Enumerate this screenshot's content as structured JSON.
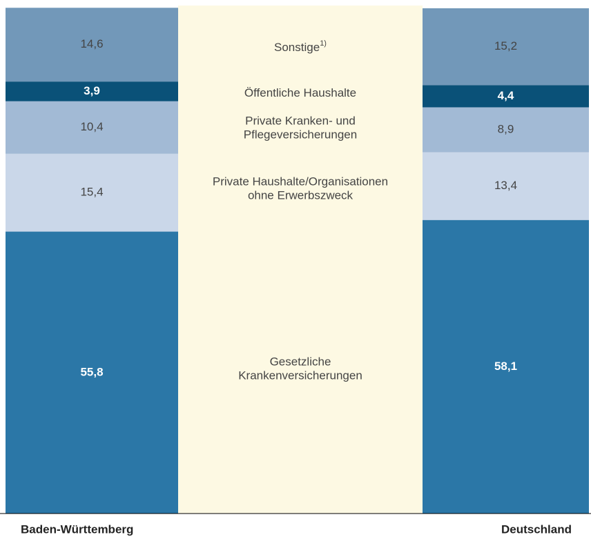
{
  "chart_data": {
    "type": "stacked_bar",
    "categories": [
      "Baden-Württemberg",
      "Deutschland"
    ],
    "ylim": [
      0,
      100
    ],
    "series": [
      {
        "name": "Gesetzliche\nKrankenversicherungen",
        "color": "#2b77a7",
        "label_color": "#ffffff",
        "values": [
          55.8,
          58.1
        ],
        "value_labels": [
          "55,8",
          "58,1"
        ]
      },
      {
        "name": "Private Haushalte/Organisationen\nohne Erwerbszweck",
        "color": "#cad7e9",
        "label_color": "#444444",
        "values": [
          15.4,
          13.4
        ],
        "value_labels": [
          "15,4",
          "13,4"
        ]
      },
      {
        "name": "Private Kranken- und\nPflegeversicherungen",
        "color": "#a2bad5",
        "label_color": "#444444",
        "values": [
          10.4,
          8.9
        ],
        "value_labels": [
          "10,4",
          "8,9"
        ]
      },
      {
        "name": "Öffentliche Haushalte",
        "color": "#0a5178",
        "label_color": "#ffffff",
        "values": [
          3.9,
          4.4
        ],
        "value_labels": [
          "3,9",
          "4,4"
        ]
      },
      {
        "name": "Sonstige",
        "name_superscript": "1)",
        "color": "#7298b9",
        "label_color": "#444444",
        "values": [
          14.6,
          15.2
        ],
        "value_labels": [
          "14,6",
          "15,2"
        ]
      }
    ]
  }
}
